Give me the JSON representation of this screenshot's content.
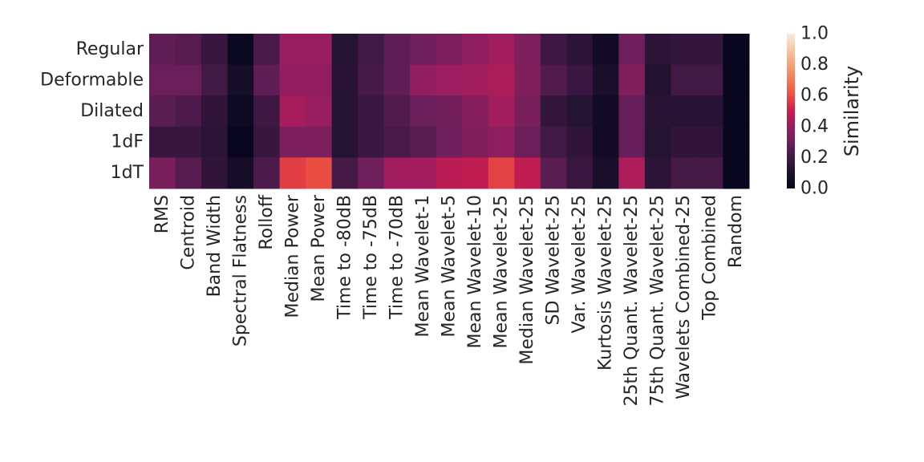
{
  "chart_data": {
    "type": "heatmap",
    "title": "",
    "xlabel": "",
    "ylabel": "",
    "rows": [
      "Regular",
      "Deformable",
      "Dilated",
      "1dF",
      "1dT"
    ],
    "columns": [
      "RMS",
      "Centroid",
      "Band Width",
      "Spectral Flatness",
      "Rolloff",
      "Median Power",
      "Mean Power",
      "Time to -80dB",
      "Time to -75dB",
      "Time to -70dB",
      "Mean Wavelet-1",
      "Mean Wavelet-5",
      "Mean Wavelet-10",
      "Mean Wavelet-25",
      "Median Wavelet-25",
      "SD Wavelet-25",
      "Var. Wavelet-25",
      "Kurtosis Wavelet-25",
      "25th Quant. Wavelet-25",
      "75th Quant. Wavelet-25",
      "Wavelets Combined-25",
      "Top Combined",
      "Random"
    ],
    "values": [
      [
        0.27,
        0.25,
        0.17,
        0.03,
        0.22,
        0.4,
        0.4,
        0.12,
        0.2,
        0.27,
        0.31,
        0.34,
        0.38,
        0.42,
        0.34,
        0.19,
        0.14,
        0.05,
        0.31,
        0.14,
        0.16,
        0.16,
        0.02
      ],
      [
        0.3,
        0.3,
        0.2,
        0.07,
        0.27,
        0.39,
        0.39,
        0.13,
        0.21,
        0.27,
        0.39,
        0.41,
        0.42,
        0.44,
        0.35,
        0.24,
        0.18,
        0.08,
        0.35,
        0.11,
        0.2,
        0.2,
        0.02
      ],
      [
        0.26,
        0.23,
        0.15,
        0.04,
        0.19,
        0.43,
        0.4,
        0.12,
        0.18,
        0.24,
        0.3,
        0.32,
        0.36,
        0.42,
        0.33,
        0.16,
        0.12,
        0.05,
        0.29,
        0.13,
        0.13,
        0.13,
        0.02
      ],
      [
        0.17,
        0.17,
        0.14,
        0.02,
        0.17,
        0.34,
        0.34,
        0.12,
        0.18,
        0.22,
        0.26,
        0.31,
        0.35,
        0.38,
        0.3,
        0.2,
        0.15,
        0.05,
        0.29,
        0.12,
        0.15,
        0.15,
        0.02
      ],
      [
        0.33,
        0.25,
        0.15,
        0.07,
        0.23,
        0.57,
        0.6,
        0.21,
        0.31,
        0.42,
        0.42,
        0.47,
        0.48,
        0.58,
        0.48,
        0.26,
        0.18,
        0.08,
        0.44,
        0.14,
        0.21,
        0.21,
        0.02
      ]
    ],
    "colorbar": {
      "label": "Similarity",
      "range": [
        0,
        1
      ],
      "ticks": [
        "0.0",
        "0.2",
        "0.4",
        "0.6",
        "0.8",
        "1.0"
      ],
      "colormap": "rocket"
    },
    "grid": false
  }
}
